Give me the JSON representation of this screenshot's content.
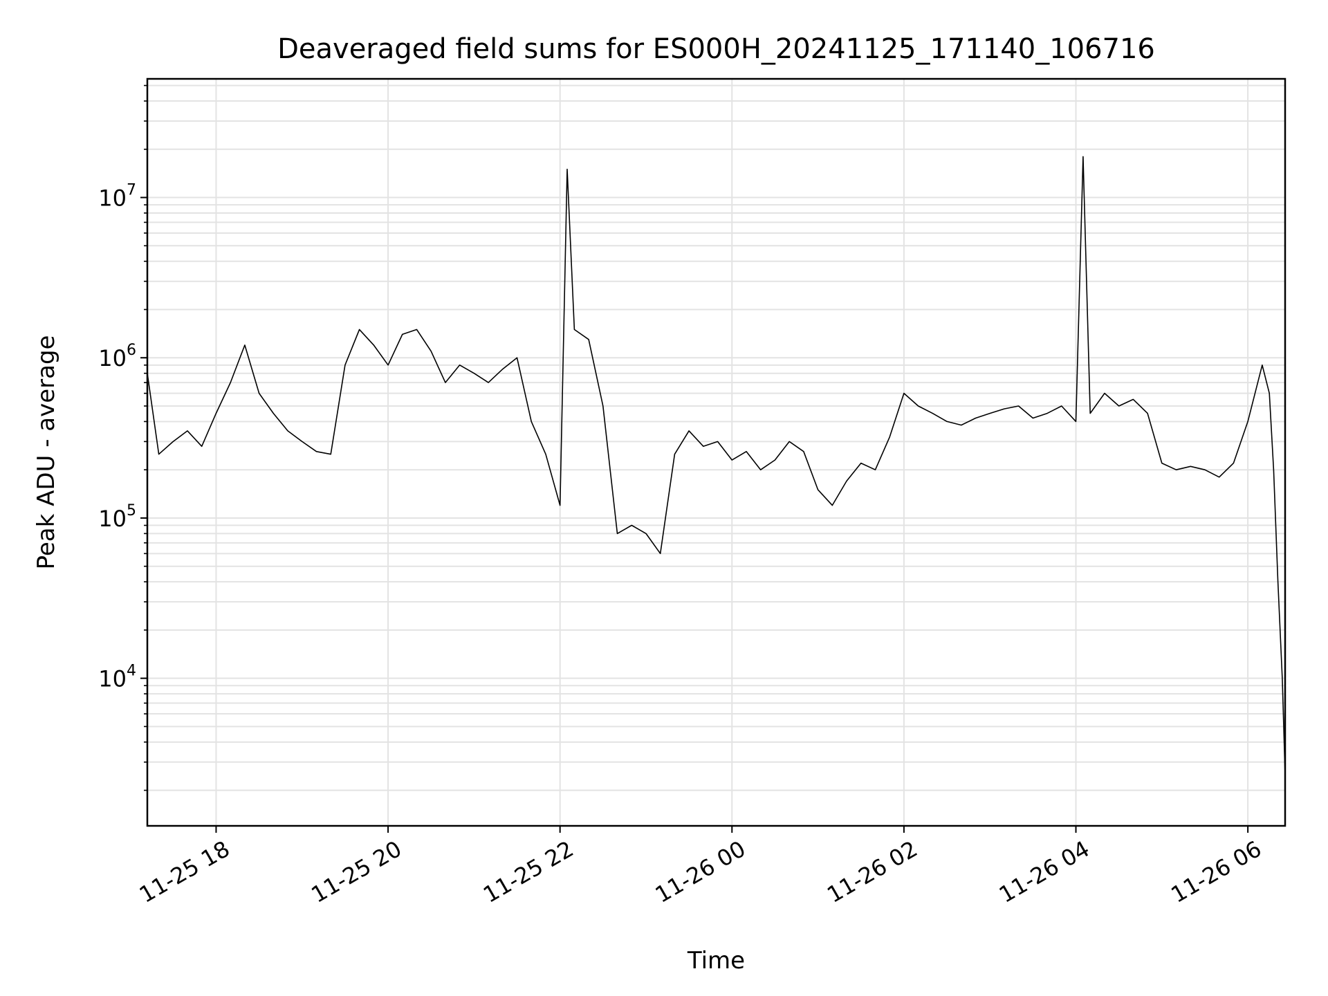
{
  "chart_data": {
    "type": "line",
    "title": "Deaveraged field sums for ES000H_20241125_171140_106716",
    "xlabel": "Time",
    "ylabel": "Peak ADU - average",
    "yscale": "log",
    "ylim": [
      1200,
      55000000
    ],
    "xlim": [
      "2024-11-25 17:12",
      "2024-11-26 06:26"
    ],
    "grid": true,
    "x_ticks": [
      {
        "label": "11-25 18",
        "time": "2024-11-25 18:00"
      },
      {
        "label": "11-25 20",
        "time": "2024-11-25 20:00"
      },
      {
        "label": "11-25 22",
        "time": "2024-11-25 22:00"
      },
      {
        "label": "11-26 00",
        "time": "2024-11-26 00:00"
      },
      {
        "label": "11-26 02",
        "time": "2024-11-26 02:00"
      },
      {
        "label": "11-26 04",
        "time": "2024-11-26 04:00"
      },
      {
        "label": "11-26 06",
        "time": "2024-11-26 06:00"
      }
    ],
    "y_ticks": [
      {
        "base": "10",
        "exp": "4",
        "value": 10000
      },
      {
        "base": "10",
        "exp": "5",
        "value": 100000
      },
      {
        "base": "10",
        "exp": "6",
        "value": 1000000
      },
      {
        "base": "10",
        "exp": "7",
        "value": 10000000
      }
    ],
    "series": [
      {
        "color": "#000000",
        "x": [
          "2024-11-25 17:12",
          "2024-11-25 17:20",
          "2024-11-25 17:30",
          "2024-11-25 17:40",
          "2024-11-25 17:50",
          "2024-11-25 18:00",
          "2024-11-25 18:10",
          "2024-11-25 18:20",
          "2024-11-25 18:30",
          "2024-11-25 18:40",
          "2024-11-25 18:50",
          "2024-11-25 19:00",
          "2024-11-25 19:10",
          "2024-11-25 19:20",
          "2024-11-25 19:30",
          "2024-11-25 19:40",
          "2024-11-25 19:50",
          "2024-11-25 20:00",
          "2024-11-25 20:10",
          "2024-11-25 20:20",
          "2024-11-25 20:30",
          "2024-11-25 20:40",
          "2024-11-25 20:50",
          "2024-11-25 21:00",
          "2024-11-25 21:10",
          "2024-11-25 21:20",
          "2024-11-25 21:30",
          "2024-11-25 21:40",
          "2024-11-25 21:50",
          "2024-11-25 22:00",
          "2024-11-25 22:05",
          "2024-11-25 22:10",
          "2024-11-25 22:20",
          "2024-11-25 22:30",
          "2024-11-25 22:40",
          "2024-11-25 22:50",
          "2024-11-25 23:00",
          "2024-11-25 23:10",
          "2024-11-25 23:20",
          "2024-11-25 23:30",
          "2024-11-25 23:40",
          "2024-11-25 23:50",
          "2024-11-26 00:00",
          "2024-11-26 00:10",
          "2024-11-26 00:20",
          "2024-11-26 00:30",
          "2024-11-26 00:40",
          "2024-11-26 00:50",
          "2024-11-26 01:00",
          "2024-11-26 01:10",
          "2024-11-26 01:20",
          "2024-11-26 01:30",
          "2024-11-26 01:40",
          "2024-11-26 01:50",
          "2024-11-26 02:00",
          "2024-11-26 02:10",
          "2024-11-26 02:20",
          "2024-11-26 02:30",
          "2024-11-26 02:40",
          "2024-11-26 02:50",
          "2024-11-26 03:00",
          "2024-11-26 03:10",
          "2024-11-26 03:20",
          "2024-11-26 03:30",
          "2024-11-26 03:40",
          "2024-11-26 03:50",
          "2024-11-26 04:00",
          "2024-11-26 04:05",
          "2024-11-26 04:10",
          "2024-11-26 04:20",
          "2024-11-26 04:30",
          "2024-11-26 04:40",
          "2024-11-26 04:50",
          "2024-11-26 05:00",
          "2024-11-26 05:10",
          "2024-11-26 05:20",
          "2024-11-26 05:30",
          "2024-11-26 05:40",
          "2024-11-26 05:50",
          "2024-11-26 06:00",
          "2024-11-26 06:05",
          "2024-11-26 06:10",
          "2024-11-26 06:15",
          "2024-11-26 06:18",
          "2024-11-26 06:21",
          "2024-11-26 06:24",
          "2024-11-26 06:26"
        ],
        "y": [
          800000,
          250000,
          300000,
          350000,
          280000,
          450000,
          700000,
          1200000,
          600000,
          450000,
          350000,
          300000,
          260000,
          250000,
          900000,
          1500000,
          1200000,
          900000,
          1400000,
          1500000,
          1100000,
          700000,
          900000,
          800000,
          700000,
          850000,
          1000000,
          400000,
          250000,
          120000,
          15000000,
          1500000,
          1300000,
          500000,
          80000,
          90000,
          80000,
          60000,
          250000,
          350000,
          280000,
          300000,
          230000,
          260000,
          200000,
          230000,
          300000,
          260000,
          150000,
          120000,
          170000,
          220000,
          200000,
          320000,
          600000,
          500000,
          450000,
          400000,
          380000,
          420000,
          450000,
          480000,
          500000,
          420000,
          450000,
          500000,
          400000,
          18000000,
          450000,
          600000,
          500000,
          550000,
          450000,
          220000,
          200000,
          210000,
          200000,
          180000,
          220000,
          400000,
          600000,
          900000,
          600000,
          200000,
          40000,
          10000,
          2500
        ]
      }
    ]
  }
}
